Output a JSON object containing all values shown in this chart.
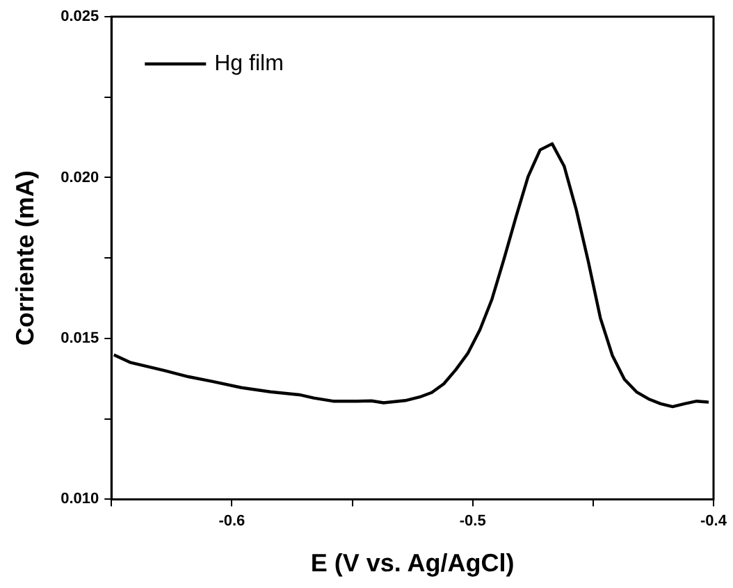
{
  "chart_data": {
    "type": "line",
    "xlabel": "E (V vs. Ag/AgCl)",
    "ylabel": "Corriente (mA)",
    "xlim": [
      -0.65,
      -0.4
    ],
    "ylim": [
      0.01,
      0.025
    ],
    "xticks": [
      {
        "value": -0.65,
        "label": null
      },
      {
        "value": -0.6,
        "label": "-0.6"
      },
      {
        "value": -0.55,
        "label": null
      },
      {
        "value": -0.5,
        "label": "-0.5"
      },
      {
        "value": -0.45,
        "label": null
      },
      {
        "value": -0.4,
        "label": "-0.4"
      }
    ],
    "yticks": [
      {
        "value": 0.01,
        "label": "0.010"
      },
      {
        "value": 0.0125,
        "label": null
      },
      {
        "value": 0.015,
        "label": "0.015"
      },
      {
        "value": 0.0175,
        "label": null
      },
      {
        "value": 0.02,
        "label": "0.020"
      },
      {
        "value": 0.0225,
        "label": null
      },
      {
        "value": 0.025,
        "label": "0.025"
      }
    ],
    "grid": false,
    "legend": "top left",
    "marker": "none",
    "line_style": "solid",
    "series": [
      {
        "name": "Hg film",
        "color": "#000000",
        "x": [
          -0.649,
          -0.642,
          -0.628,
          -0.618,
          -0.608,
          -0.596,
          -0.584,
          -0.572,
          -0.566,
          -0.558,
          -0.548,
          -0.542,
          -0.537,
          -0.528,
          -0.522,
          -0.517,
          -0.512,
          -0.507,
          -0.502,
          -0.497,
          -0.492,
          -0.487,
          -0.482,
          -0.477,
          -0.472,
          -0.467,
          -0.462,
          -0.457,
          -0.452,
          -0.447,
          -0.442,
          -0.437,
          -0.432,
          -0.427,
          -0.422,
          -0.417,
          -0.412,
          -0.407,
          -0.402
        ],
        "values": [
          0.01449,
          0.01425,
          0.014,
          0.01381,
          0.01366,
          0.01347,
          0.01334,
          0.01325,
          0.01315,
          0.01305,
          0.01305,
          0.01306,
          0.013,
          0.01307,
          0.01318,
          0.01332,
          0.01359,
          0.01403,
          0.01454,
          0.01527,
          0.01622,
          0.01747,
          0.01878,
          0.02003,
          0.02086,
          0.02105,
          0.02035,
          0.019,
          0.01739,
          0.01564,
          0.01447,
          0.01373,
          0.01334,
          0.01312,
          0.01297,
          0.01288,
          0.01297,
          0.01305,
          0.01302
        ]
      }
    ]
  }
}
